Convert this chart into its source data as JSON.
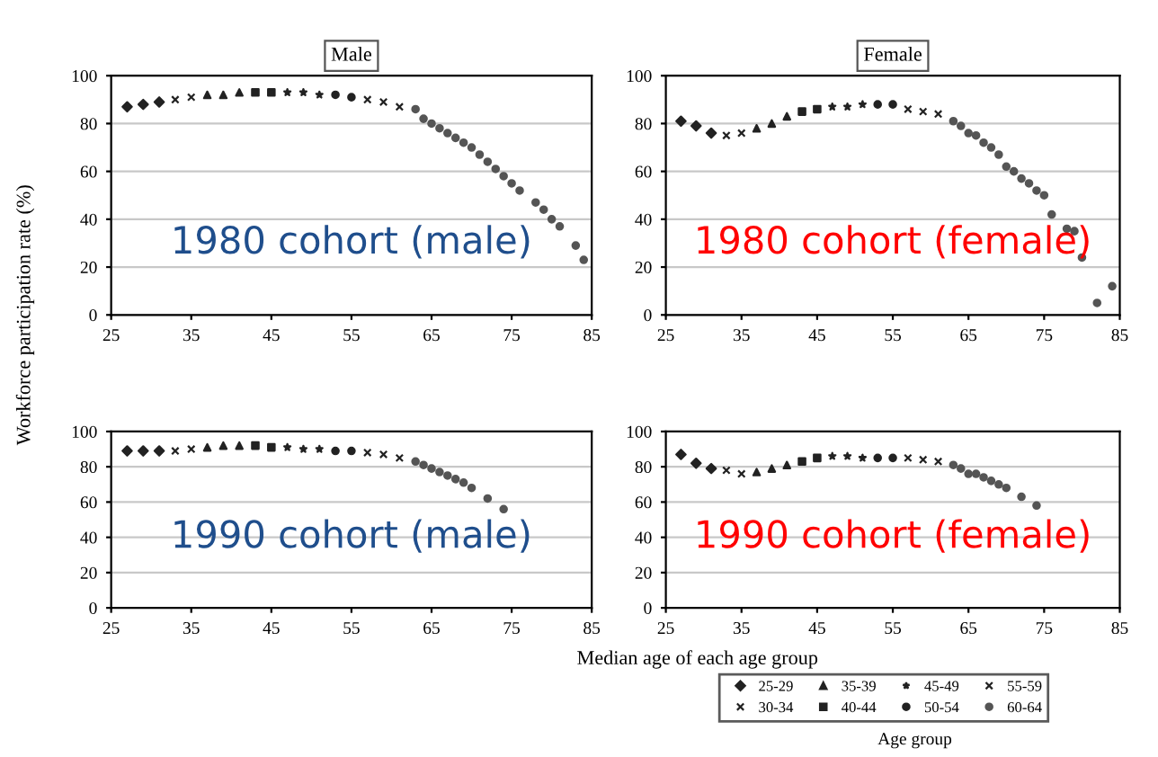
{
  "chart_data": [
    {
      "type": "scatter",
      "title": "Male",
      "ylabel": "Workforce participation rate (%)",
      "annotations": [
        "1980 cohort (male)"
      ],
      "xlim": [
        25,
        85
      ],
      "xticks": [
        25,
        35,
        45,
        55,
        65,
        75,
        85
      ],
      "ylim": [
        0,
        100
      ],
      "yticks": [
        0,
        20,
        40,
        60,
        80,
        100
      ],
      "grid": "y",
      "legend": false,
      "series": [
        {
          "marker": "diamond",
          "color": "#222222",
          "x": [
            27,
            29,
            31
          ],
          "values": [
            87,
            88,
            89
          ]
        },
        {
          "marker": "cross",
          "color": "#222222",
          "x": [
            33,
            35
          ],
          "values": [
            90,
            91
          ]
        },
        {
          "marker": "triangle",
          "color": "#222222",
          "x": [
            37,
            39,
            41
          ],
          "values": [
            92,
            92,
            93
          ]
        },
        {
          "marker": "square",
          "color": "#222222",
          "x": [
            43,
            45
          ],
          "values": [
            93,
            93
          ]
        },
        {
          "marker": "star",
          "color": "#222222",
          "x": [
            47,
            49,
            51
          ],
          "values": [
            93,
            93,
            92
          ]
        },
        {
          "marker": "circle",
          "color": "#222222",
          "x": [
            53,
            55
          ],
          "values": [
            92,
            91
          ]
        },
        {
          "marker": "cross",
          "color": "#222222",
          "x": [
            57,
            59,
            61
          ],
          "values": [
            90,
            89,
            87
          ]
        },
        {
          "marker": "circle",
          "color": "#555555",
          "x": [
            63,
            64,
            65,
            66,
            67,
            68,
            69,
            70,
            71,
            72,
            73,
            74,
            75,
            76,
            78,
            79,
            80,
            81,
            83,
            84
          ],
          "values": [
            86,
            82,
            80,
            78,
            76,
            74,
            72,
            70,
            67,
            64,
            61,
            58,
            55,
            52,
            47,
            44,
            40,
            37,
            29,
            23
          ]
        }
      ]
    },
    {
      "type": "scatter",
      "title": "Female",
      "annotations": [
        "1980 cohort (female)"
      ],
      "xlim": [
        25,
        85
      ],
      "xticks": [
        25,
        35,
        45,
        55,
        65,
        75,
        85
      ],
      "ylim": [
        0,
        100
      ],
      "yticks": [
        0,
        20,
        40,
        60,
        80,
        100
      ],
      "grid": "y",
      "legend": false,
      "series": [
        {
          "marker": "diamond",
          "color": "#222222",
          "x": [
            27,
            29,
            31
          ],
          "values": [
            81,
            79,
            76
          ]
        },
        {
          "marker": "cross",
          "color": "#222222",
          "x": [
            33,
            35
          ],
          "values": [
            75,
            76
          ]
        },
        {
          "marker": "triangle",
          "color": "#222222",
          "x": [
            37,
            39,
            41
          ],
          "values": [
            78,
            80,
            83
          ]
        },
        {
          "marker": "square",
          "color": "#222222",
          "x": [
            43,
            45
          ],
          "values": [
            85,
            86
          ]
        },
        {
          "marker": "star",
          "color": "#222222",
          "x": [
            47,
            49,
            51
          ],
          "values": [
            87,
            87,
            88
          ]
        },
        {
          "marker": "circle",
          "color": "#222222",
          "x": [
            53,
            55
          ],
          "values": [
            88,
            88
          ]
        },
        {
          "marker": "cross",
          "color": "#222222",
          "x": [
            57,
            59,
            61
          ],
          "values": [
            86,
            85,
            84
          ]
        },
        {
          "marker": "circle",
          "color": "#555555",
          "x": [
            63,
            64,
            65,
            66,
            67,
            68,
            69,
            70,
            71,
            72,
            73,
            74,
            75,
            76,
            78,
            79,
            80,
            82,
            84
          ],
          "values": [
            81,
            79,
            76,
            75,
            72,
            70,
            67,
            62,
            60,
            57,
            55,
            52,
            50,
            42,
            36,
            35,
            24,
            5,
            12
          ]
        }
      ]
    },
    {
      "type": "scatter",
      "xlabel": "Median age of each age group",
      "annotations": [
        "1990 cohort (male)"
      ],
      "xlim": [
        25,
        85
      ],
      "xticks": [
        25,
        35,
        45,
        55,
        65,
        75,
        85
      ],
      "ylim": [
        0,
        100
      ],
      "yticks": [
        0,
        20,
        40,
        60,
        80,
        100
      ],
      "grid": "y",
      "legend": false,
      "series": [
        {
          "marker": "diamond",
          "color": "#222222",
          "x": [
            27,
            29,
            31
          ],
          "values": [
            89,
            89,
            89
          ]
        },
        {
          "marker": "cross",
          "color": "#222222",
          "x": [
            33,
            35
          ],
          "values": [
            89,
            90
          ]
        },
        {
          "marker": "triangle",
          "color": "#222222",
          "x": [
            37,
            39,
            41
          ],
          "values": [
            91,
            92,
            92
          ]
        },
        {
          "marker": "square",
          "color": "#222222",
          "x": [
            43,
            45
          ],
          "values": [
            92,
            91
          ]
        },
        {
          "marker": "star",
          "color": "#222222",
          "x": [
            47,
            49,
            51
          ],
          "values": [
            91,
            90,
            90
          ]
        },
        {
          "marker": "circle",
          "color": "#222222",
          "x": [
            53,
            55
          ],
          "values": [
            89,
            89
          ]
        },
        {
          "marker": "cross",
          "color": "#222222",
          "x": [
            57,
            59,
            61
          ],
          "values": [
            88,
            87,
            85
          ]
        },
        {
          "marker": "circle",
          "color": "#555555",
          "x": [
            63,
            64,
            65,
            66,
            67,
            68,
            69,
            70,
            72,
            74
          ],
          "values": [
            83,
            81,
            79,
            77,
            75,
            73,
            71,
            68,
            62,
            56
          ]
        }
      ]
    },
    {
      "type": "scatter",
      "annotations": [
        "1990 cohort (female)"
      ],
      "legend_title": "Age group",
      "xlim": [
        25,
        85
      ],
      "xticks": [
        25,
        35,
        45,
        55,
        65,
        75,
        85
      ],
      "ylim": [
        0,
        100
      ],
      "yticks": [
        0,
        20,
        40,
        60,
        80,
        100
      ],
      "grid": "y",
      "legend": "bottom",
      "series": [
        {
          "name": "25-29",
          "marker": "diamond",
          "color": "#222222",
          "x": [
            27,
            29,
            31
          ],
          "values": [
            87,
            82,
            79
          ]
        },
        {
          "name": "30-34",
          "marker": "cross",
          "color": "#222222",
          "x": [
            33,
            35
          ],
          "values": [
            78,
            76
          ]
        },
        {
          "name": "35-39",
          "marker": "triangle",
          "color": "#222222",
          "x": [
            37,
            39,
            41
          ],
          "values": [
            77,
            79,
            81
          ]
        },
        {
          "name": "40-44",
          "marker": "square",
          "color": "#222222",
          "x": [
            43,
            45
          ],
          "values": [
            83,
            85
          ]
        },
        {
          "name": "45-49",
          "marker": "star",
          "color": "#222222",
          "x": [
            47,
            49,
            51
          ],
          "values": [
            86,
            86,
            85
          ]
        },
        {
          "name": "50-54",
          "marker": "circle",
          "color": "#222222",
          "x": [
            53,
            55
          ],
          "values": [
            85,
            85
          ]
        },
        {
          "name": "55-59",
          "marker": "cross",
          "color": "#222222",
          "x": [
            57,
            59,
            61
          ],
          "values": [
            85,
            84,
            83
          ]
        },
        {
          "name": "60-64",
          "marker": "circle",
          "color": "#555555",
          "x": [
            63,
            64,
            65,
            66,
            67,
            68,
            69,
            70,
            72,
            74
          ],
          "values": [
            81,
            79,
            76,
            76,
            74,
            72,
            70,
            68,
            63,
            58
          ]
        }
      ]
    }
  ]
}
